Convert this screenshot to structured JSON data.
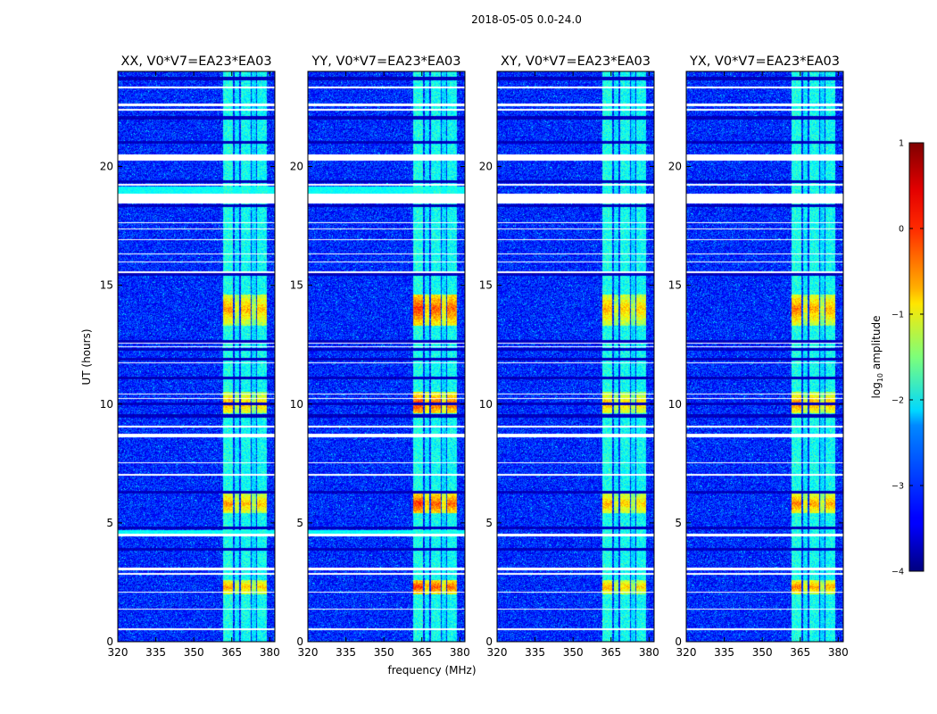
{
  "chart_data": {
    "type": "heatmap",
    "suptitle": "2018-05-05 0.0-24.0",
    "xlabel": "frequency (MHz)",
    "ylabel": "UT (hours)",
    "xlim": [
      320,
      382
    ],
    "ylim": [
      0,
      24
    ],
    "xticks": [
      320,
      335,
      350,
      365,
      380
    ],
    "yticks": [
      0,
      5,
      10,
      15,
      20
    ],
    "panels": [
      {
        "title": "XX, V0*V7=EA23*EA03",
        "band_level": -2.0,
        "rfi_peak": -0.35,
        "strip_level": -2.1
      },
      {
        "title": "YY, V0*V7=EA23*EA03",
        "band_level": -1.7,
        "rfi_peak": 0.15,
        "strip_level": -2.1
      },
      {
        "title": "XY, V0*V7=EA23*EA03",
        "band_level": -2.0,
        "rfi_peak": -0.45,
        "strip_level": null
      },
      {
        "title": "YX, V0*V7=EA23*EA03",
        "band_level": -2.0,
        "rfi_peak": -0.2,
        "strip_level": null
      }
    ],
    "background_level": -3.2,
    "rfi_band_mhz": [
      361,
      379
    ],
    "rfi_channels_mhz": [
      [
        361.5,
        365.5,
        1.0
      ],
      [
        366.0,
        368.0,
        0.6
      ],
      [
        368.5,
        372.5,
        0.9
      ],
      [
        373.0,
        374.5,
        0.5
      ],
      [
        375.0,
        379.0,
        0.85
      ]
    ],
    "rfi_bursts": [
      {
        "t0": 13.3,
        "t1": 14.6,
        "peak_at": 14.0
      },
      {
        "t0": 9.6,
        "t1": 10.5,
        "peak_at": 10.0
      },
      {
        "t0": 5.4,
        "t1": 6.3,
        "peak_at": 5.8
      },
      {
        "t0": 2.0,
        "t1": 2.6,
        "peak_at": 2.3
      }
    ],
    "flagged_rows_hours": [
      [
        23.3,
        23.38
      ],
      [
        22.55,
        22.65
      ],
      [
        22.35,
        22.43
      ],
      [
        20.25,
        20.5
      ],
      [
        19.2,
        19.25
      ],
      [
        18.45,
        18.85
      ],
      [
        17.6,
        17.65
      ],
      [
        17.35,
        17.4
      ],
      [
        16.9,
        16.95
      ],
      [
        16.3,
        16.35
      ],
      [
        15.95,
        16.0
      ],
      [
        15.5,
        15.6
      ],
      [
        12.55,
        12.6
      ],
      [
        12.4,
        12.45
      ],
      [
        11.7,
        11.75
      ],
      [
        10.4,
        10.45
      ],
      [
        10.2,
        10.25
      ],
      [
        9.0,
        9.1
      ],
      [
        8.6,
        8.75
      ],
      [
        7.5,
        7.55
      ],
      [
        7.0,
        7.05
      ],
      [
        4.45,
        4.55
      ],
      [
        3.0,
        3.1
      ],
      [
        2.8,
        2.9
      ],
      [
        2.05,
        2.1
      ],
      [
        1.35,
        1.4
      ],
      [
        0.5,
        0.55
      ]
    ],
    "dark_rows_hours": [
      23.7,
      22.05,
      21.0,
      19.35,
      18.35,
      15.45,
      12.65,
      12.3,
      11.9,
      11.1,
      10.0,
      9.5,
      6.3,
      4.8,
      3.9
    ],
    "colorbar": {
      "label": "log",
      "label_sub": "10",
      "label_rest": " amplitude",
      "range": [
        -4,
        1
      ],
      "ticks": [
        "1",
        "0",
        "−1",
        "−2",
        "−3",
        "−4"
      ],
      "colormap": "jet"
    }
  }
}
